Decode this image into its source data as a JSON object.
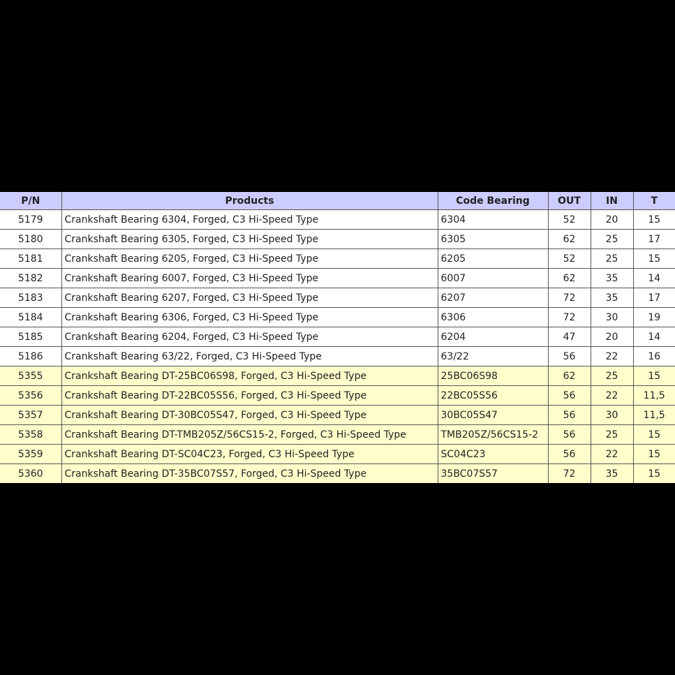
{
  "table": {
    "headers": [
      "P/N",
      "Products",
      "Code Bearing",
      "OUT",
      "IN",
      "T"
    ],
    "header_color": "#ccccff",
    "highlight_color": "#ffffcc",
    "rows": [
      {
        "pn": "5179",
        "product": "Crankshaft Bearing 6304, Forged, C3 Hi-Speed Type",
        "code": "6304",
        "out": "52",
        "in": "20",
        "t": "15",
        "highlight": false
      },
      {
        "pn": "5180",
        "product": "Crankshaft Bearing 6305,  Forged, C3 Hi-Speed Type",
        "code": "6305",
        "out": "62",
        "in": "25",
        "t": "17",
        "highlight": false
      },
      {
        "pn": "5181",
        "product": "Crankshaft Bearing 6205, Forged, C3 Hi-Speed Type",
        "code": "6205",
        "out": "52",
        "in": "25",
        "t": "15",
        "highlight": false
      },
      {
        "pn": "5182",
        "product": "Crankshaft Bearing 6007, Forged, C3 Hi-Speed Type",
        "code": "6007",
        "out": "62",
        "in": "35",
        "t": "14",
        "highlight": false
      },
      {
        "pn": "5183",
        "product": "Crankshaft Bearing 6207, Forged, C3 Hi-Speed Type",
        "code": "6207",
        "out": "72",
        "in": "35",
        "t": "17",
        "highlight": false
      },
      {
        "pn": "5184",
        "product": "Crankshaft Bearing 6306, Forged, C3 Hi-Speed Type",
        "code": "6306",
        "out": "72",
        "in": "30",
        "t": "19",
        "highlight": false
      },
      {
        "pn": "5185",
        "product": "Crankshaft Bearing 6204, Forged, C3 Hi-Speed Type",
        "code": "6204",
        "out": "47",
        "in": "20",
        "t": "14",
        "highlight": false
      },
      {
        "pn": "5186",
        "product": "Crankshaft Bearing 63/22, Forged, C3 Hi-Speed Type",
        "code": "63/22",
        "out": "56",
        "in": "22",
        "t": "16",
        "highlight": false
      },
      {
        "pn": "5355",
        "product": "Crankshaft Bearing DT-25BC06S98, Forged, C3 Hi-Speed Type",
        "code": "25BC06S98",
        "out": "62",
        "in": "25",
        "t": "15",
        "highlight": true
      },
      {
        "pn": "5356",
        "product": "Crankshaft Bearing DT-22BC05S56, Forged, C3 Hi-Speed Type",
        "code": "22BC05S56",
        "out": "56",
        "in": "22",
        "t": "11,5",
        "highlight": true
      },
      {
        "pn": "5357",
        "product": "Crankshaft Bearing DT-30BC05S47, Forged, C3 Hi-Speed Type",
        "code": "30BC05S47",
        "out": "56",
        "in": "30",
        "t": "11,5",
        "highlight": true
      },
      {
        "pn": "5358",
        "product": "Crankshaft Bearing DT-TMB205Z/56CS15-2, Forged, C3 Hi-Speed Type",
        "code": "TMB205Z/56CS15-2",
        "out": "56",
        "in": "25",
        "t": "15",
        "highlight": true
      },
      {
        "pn": "5359",
        "product": "Crankshaft Bearing DT-SC04C23, Forged, C3 Hi-Speed Type",
        "code": "SC04C23",
        "out": "56",
        "in": "22",
        "t": "15",
        "highlight": true
      },
      {
        "pn": "5360",
        "product": "Crankshaft Bearing DT-35BC07S57, Forged, C3 Hi-Speed Type",
        "code": "35BC07S57",
        "out": "72",
        "in": "35",
        "t": "15",
        "highlight": true
      }
    ]
  }
}
